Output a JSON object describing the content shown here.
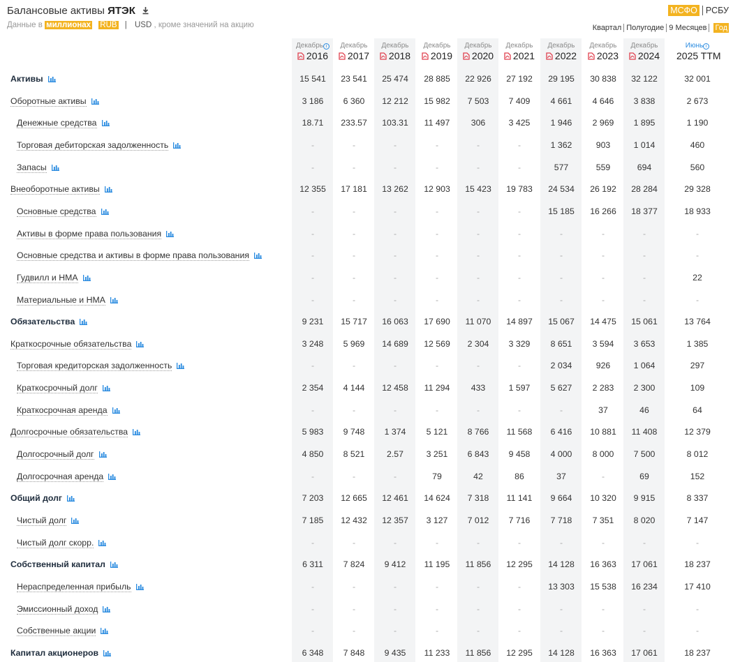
{
  "header": {
    "title_prefix": "Балансовые активы",
    "title_company": "ЯТЭК",
    "units_prefix": "Данные в",
    "units_value": "миллионах",
    "currency_rub": "RUB",
    "currency_sep": "|",
    "currency_usd": "USD",
    "units_suffix": ", кроме значений на акцию",
    "standard_active": "МСФО",
    "standard_other": "РСБУ",
    "periods": [
      "Квартал",
      "Полугодие",
      "9 Месяцев",
      "Год"
    ]
  },
  "icons": {
    "download": "download-icon",
    "pdf": "pdf-icon",
    "chart": "bar-chart-icon",
    "info": "info-icon"
  },
  "colors": {
    "accent": "#f3b320",
    "pdf_red": "#e0414f",
    "chart_blue": "#2a8be0",
    "column_shade": "#f3f4f5"
  },
  "columns": [
    {
      "month": "Декабрь",
      "year": "2016",
      "pdf": true
    },
    {
      "month": "Декабрь",
      "year": "2017",
      "pdf": true
    },
    {
      "month": "Декабрь",
      "year": "2018",
      "pdf": true
    },
    {
      "month": "Декабрь",
      "year": "2019",
      "pdf": true
    },
    {
      "month": "Декабрь",
      "year": "2020",
      "pdf": true
    },
    {
      "month": "Декабрь",
      "year": "2021",
      "pdf": true
    },
    {
      "month": "Декабрь",
      "year": "2022",
      "pdf": true
    },
    {
      "month": "Декабрь",
      "year": "2023",
      "pdf": true
    },
    {
      "month": "Декабрь",
      "year": "2024",
      "pdf": true
    },
    {
      "month": "Июнь",
      "year": "2025 TTM",
      "pdf": false
    }
  ],
  "rows": [
    {
      "label": "Активы",
      "level": "bold",
      "values": [
        "15 541",
        "23 541",
        "25 474",
        "28 885",
        "22 926",
        "27 192",
        "29 195",
        "30 838",
        "32 122",
        "32 001"
      ]
    },
    {
      "label": "Оборотные активы",
      "level": "0",
      "values": [
        "3 186",
        "6 360",
        "12 212",
        "15 982",
        "7 503",
        "7 409",
        "4 661",
        "4 646",
        "3 838",
        "2 673"
      ]
    },
    {
      "label": "Денежные средства",
      "level": "1",
      "values": [
        "18.71",
        "233.57",
        "103.31",
        "11 497",
        "306",
        "3 425",
        "1 946",
        "2 969",
        "1 895",
        "1 190"
      ]
    },
    {
      "label": "Торговая дебиторская задолженность",
      "level": "1",
      "values": [
        "-",
        "-",
        "-",
        "-",
        "-",
        "-",
        "1 362",
        "903",
        "1 014",
        "460"
      ]
    },
    {
      "label": "Запасы",
      "level": "1",
      "values": [
        "-",
        "-",
        "-",
        "-",
        "-",
        "-",
        "577",
        "559",
        "694",
        "560"
      ]
    },
    {
      "label": "Внеоборотные активы",
      "level": "0",
      "values": [
        "12 355",
        "17 181",
        "13 262",
        "12 903",
        "15 423",
        "19 783",
        "24 534",
        "26 192",
        "28 284",
        "29 328"
      ]
    },
    {
      "label": "Основные средства",
      "level": "1",
      "values": [
        "-",
        "-",
        "-",
        "-",
        "-",
        "-",
        "15 185",
        "16 266",
        "18 377",
        "18 933"
      ]
    },
    {
      "label": "Активы в форме права пользования",
      "level": "1",
      "values": [
        "-",
        "-",
        "-",
        "-",
        "-",
        "-",
        "-",
        "-",
        "-",
        "-"
      ]
    },
    {
      "label": "Основные средства и активы в форме права пользования",
      "level": "1",
      "values": [
        "-",
        "-",
        "-",
        "-",
        "-",
        "-",
        "-",
        "-",
        "-",
        "-"
      ]
    },
    {
      "label": "Гудвилл и НМА",
      "level": "1",
      "values": [
        "-",
        "-",
        "-",
        "-",
        "-",
        "-",
        "-",
        "-",
        "-",
        "22"
      ]
    },
    {
      "label": "Материальные и НМА",
      "level": "1",
      "values": [
        "-",
        "-",
        "-",
        "-",
        "-",
        "-",
        "-",
        "-",
        "-",
        "-"
      ]
    },
    {
      "label": "Обязательства",
      "level": "bold",
      "values": [
        "9 231",
        "15 717",
        "16 063",
        "17 690",
        "11 070",
        "14 897",
        "15 067",
        "14 475",
        "15 061",
        "13 764"
      ]
    },
    {
      "label": "Краткосрочные обязательства",
      "level": "0",
      "values": [
        "3 248",
        "5 969",
        "14 689",
        "12 569",
        "2 304",
        "3 329",
        "8 651",
        "3 594",
        "3 653",
        "1 385"
      ]
    },
    {
      "label": "Торговая кредиторская задолженность",
      "level": "1",
      "values": [
        "-",
        "-",
        "-",
        "-",
        "-",
        "-",
        "2 034",
        "926",
        "1 064",
        "297"
      ]
    },
    {
      "label": "Краткосрочный долг",
      "level": "1",
      "values": [
        "2 354",
        "4 144",
        "12 458",
        "11 294",
        "433",
        "1 597",
        "5 627",
        "2 283",
        "2 300",
        "109"
      ]
    },
    {
      "label": "Краткосрочная аренда",
      "level": "1",
      "values": [
        "-",
        "-",
        "-",
        "-",
        "-",
        "-",
        "-",
        "37",
        "46",
        "64"
      ]
    },
    {
      "label": "Долгосрочные обязательства",
      "level": "0",
      "values": [
        "5 983",
        "9 748",
        "1 374",
        "5 121",
        "8 766",
        "11 568",
        "6 416",
        "10 881",
        "11 408",
        "12 379"
      ]
    },
    {
      "label": "Долгосрочный долг",
      "level": "1",
      "values": [
        "4 850",
        "8 521",
        "2.57",
        "3 251",
        "6 843",
        "9 458",
        "4 000",
        "8 000",
        "7 500",
        "8 012"
      ]
    },
    {
      "label": "Долгосрочная аренда",
      "level": "1",
      "values": [
        "-",
        "-",
        "-",
        "79",
        "42",
        "86",
        "37",
        "-",
        "69",
        "152"
      ]
    },
    {
      "label": "Общий долг",
      "level": "bold",
      "values": [
        "7 203",
        "12 665",
        "12 461",
        "14 624",
        "7 318",
        "11 141",
        "9 664",
        "10 320",
        "9 915",
        "8 337"
      ]
    },
    {
      "label": "Чистый долг",
      "level": "1",
      "values": [
        "7 185",
        "12 432",
        "12 357",
        "3 127",
        "7 012",
        "7 716",
        "7 718",
        "7 351",
        "8 020",
        "7 147"
      ]
    },
    {
      "label": "Чистый долг скорр.",
      "level": "1",
      "values": [
        "-",
        "-",
        "-",
        "-",
        "-",
        "-",
        "-",
        "-",
        "-",
        "-"
      ]
    },
    {
      "label": "Собственный капитал",
      "level": "bold",
      "values": [
        "6 311",
        "7 824",
        "9 412",
        "11 195",
        "11 856",
        "12 295",
        "14 128",
        "16 363",
        "17 061",
        "18 237"
      ]
    },
    {
      "label": "Нераспределенная прибыль",
      "level": "1",
      "values": [
        "-",
        "-",
        "-",
        "-",
        "-",
        "-",
        "13 303",
        "15 538",
        "16 234",
        "17 410"
      ]
    },
    {
      "label": "Эмиссионный доход",
      "level": "1",
      "values": [
        "-",
        "-",
        "-",
        "-",
        "-",
        "-",
        "-",
        "-",
        "-",
        "-"
      ]
    },
    {
      "label": "Собственные акции",
      "level": "1",
      "values": [
        "-",
        "-",
        "-",
        "-",
        "-",
        "-",
        "-",
        "-",
        "-",
        "-"
      ]
    },
    {
      "label": "Капитал акционеров",
      "level": "bold",
      "values": [
        "6 348",
        "7 848",
        "9 435",
        "11 233",
        "11 856",
        "12 295",
        "14 128",
        "16 363",
        "17 061",
        "18 237"
      ]
    }
  ]
}
